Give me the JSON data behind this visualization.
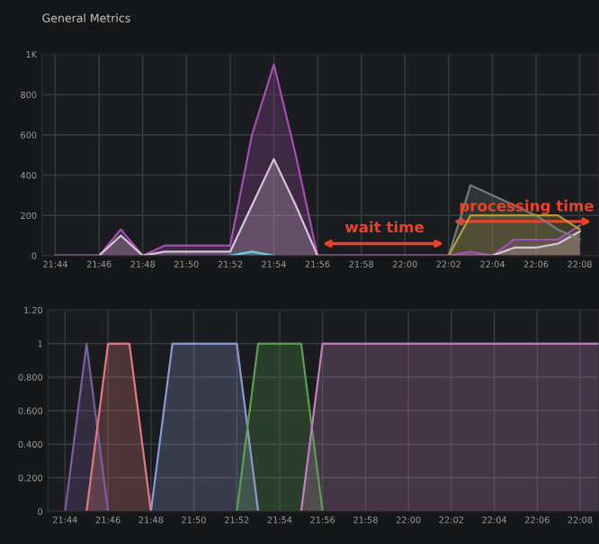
{
  "chart_data": [
    {
      "type": "area",
      "title": "General Metrics",
      "grid": true,
      "x": [
        21.7333,
        21.75,
        21.7667,
        21.7833,
        21.8,
        21.8167,
        21.8333,
        21.85,
        21.8667,
        21.8833,
        21.9,
        21.9167,
        21.9333,
        21.95,
        21.9667,
        21.9833,
        22.0,
        22.0167,
        22.0333,
        22.05,
        22.0667,
        22.0833,
        22.1,
        22.1167,
        22.1333
      ],
      "series": [
        {
          "color": "#a24fb0",
          "values": [
            0,
            0,
            0,
            130,
            0,
            50,
            50,
            50,
            50,
            600,
            950,
            500,
            0,
            0,
            0,
            0,
            0,
            0,
            0,
            20,
            0,
            80,
            80,
            80,
            150
          ]
        },
        {
          "color": "#d8c4d8",
          "values": [
            0,
            0,
            0,
            100,
            0,
            20,
            20,
            20,
            20,
            250,
            480,
            250,
            0,
            0,
            0,
            0,
            0,
            0,
            0,
            0,
            0,
            40,
            40,
            60,
            120
          ]
        },
        {
          "color": "#6f7c78",
          "x": [
            22.0333,
            22.05,
            22.0667,
            22.0833,
            22.1,
            22.1167,
            22.1333
          ],
          "values": [
            0,
            350,
            300,
            250,
            200,
            130,
            80
          ]
        },
        {
          "color": "#b49a3c",
          "x": [
            22.0333,
            22.05,
            22.0667,
            22.0833,
            22.1,
            22.1167,
            22.1333
          ],
          "values": [
            0,
            200,
            200,
            200,
            200,
            200,
            130
          ]
        },
        {
          "color": "#6ed0e0",
          "x": [
            21.8667,
            21.8833,
            21.9
          ],
          "values": [
            0,
            20,
            0
          ]
        }
      ],
      "xlim": [
        21.7231,
        22.148
      ],
      "ylim": [
        0,
        1000
      ],
      "xticks": [
        {
          "value": 21.7333,
          "label": "21:44"
        },
        {
          "value": 21.7667,
          "label": "21:46"
        },
        {
          "value": 21.8,
          "label": "21:48"
        },
        {
          "value": 21.8333,
          "label": "21:50"
        },
        {
          "value": 21.8667,
          "label": "21:52"
        },
        {
          "value": 21.9,
          "label": "21:54"
        },
        {
          "value": 21.9333,
          "label": "21:56"
        },
        {
          "value": 21.9667,
          "label": "21:58"
        },
        {
          "value": 22.0,
          "label": "22:00"
        },
        {
          "value": 22.0333,
          "label": "22:02"
        },
        {
          "value": 22.0667,
          "label": "22:04"
        },
        {
          "value": 22.1,
          "label": "22:06"
        },
        {
          "value": 22.1333,
          "label": "22:08"
        }
      ],
      "yticks": [
        0,
        200,
        400,
        600,
        800,
        {
          "value": 1000,
          "label": "1K"
        }
      ],
      "annotations": [
        "wait time",
        "processing time"
      ]
    },
    {
      "type": "area",
      "grid": true,
      "series": [
        {
          "color": "#7a5fa0",
          "x": [
            21.7333,
            21.75,
            21.7667
          ],
          "values": [
            0,
            1,
            0
          ]
        },
        {
          "color": "#e07a80",
          "x": [
            21.75,
            21.7667,
            21.7833,
            21.8
          ],
          "values": [
            0,
            1,
            1,
            0
          ]
        },
        {
          "color": "#8a9ad0",
          "x": [
            21.8,
            21.8167,
            21.8333,
            21.85,
            21.8667,
            21.8833
          ],
          "values": [
            0,
            1,
            1,
            1,
            1,
            0
          ]
        },
        {
          "color": "#5aa050",
          "x": [
            21.8667,
            21.8833,
            21.9,
            21.9167,
            21.9333
          ],
          "values": [
            0,
            1,
            1,
            1,
            0
          ]
        },
        {
          "color": "#c080c0",
          "x": [
            21.9167,
            21.9333,
            21.95,
            22.0,
            22.05,
            22.1,
            22.148
          ],
          "values": [
            0,
            1,
            1,
            1,
            1,
            1,
            1
          ]
        }
      ],
      "xlim": [
        21.72,
        22.148
      ],
      "ylim": [
        0,
        1.2
      ],
      "xticks": [
        {
          "value": 21.7333,
          "label": "21:44"
        },
        {
          "value": 21.7667,
          "label": "21:46"
        },
        {
          "value": 21.8,
          "label": "21:48"
        },
        {
          "value": 21.8333,
          "label": "21:50"
        },
        {
          "value": 21.8667,
          "label": "21:52"
        },
        {
          "value": 21.9,
          "label": "21:54"
        },
        {
          "value": 21.9333,
          "label": "21:56"
        },
        {
          "value": 21.9667,
          "label": "21:58"
        },
        {
          "value": 22.0,
          "label": "22:00"
        },
        {
          "value": 22.0333,
          "label": "22:02"
        },
        {
          "value": 22.0667,
          "label": "22:04"
        },
        {
          "value": 22.1,
          "label": "22:06"
        },
        {
          "value": 22.1333,
          "label": "22:08"
        }
      ],
      "yticks": [
        0,
        {
          "value": 0.2,
          "label": "0.200"
        },
        {
          "value": 0.4,
          "label": "0.400"
        },
        {
          "value": 0.6,
          "label": "0.600"
        },
        {
          "value": 0.8,
          "label": "0.800"
        },
        1,
        {
          "value": 1.2,
          "label": "1.20"
        }
      ]
    }
  ]
}
